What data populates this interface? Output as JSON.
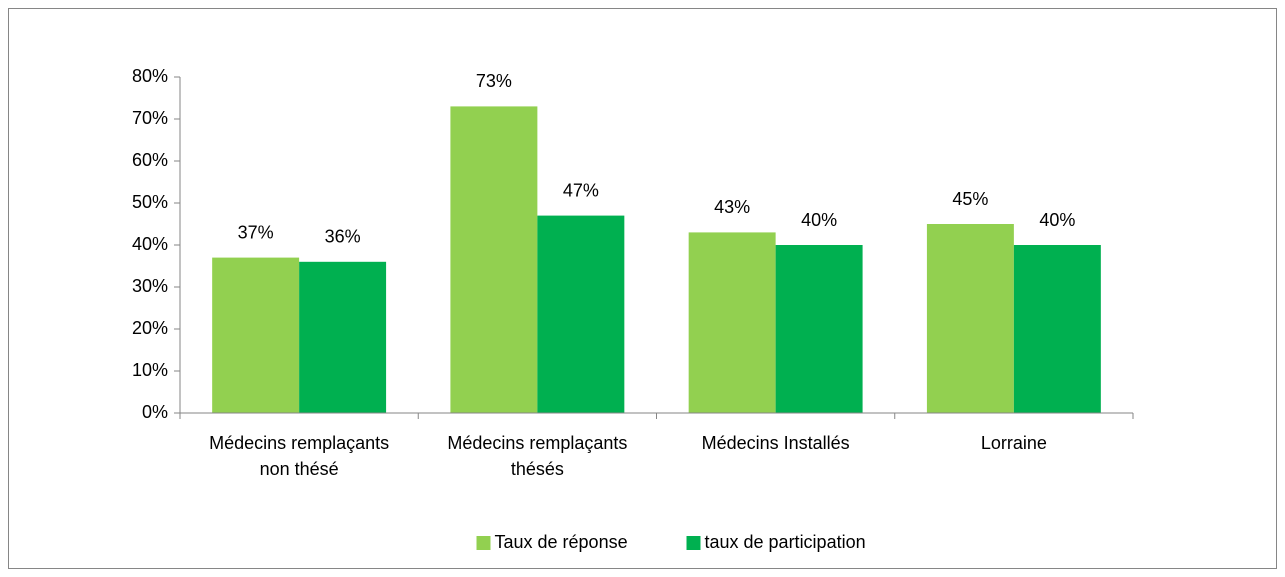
{
  "chart_data": {
    "type": "bar",
    "categories": [
      "Médecins remplaçants non thésé",
      "Médecins remplaçants thésés",
      "Médecins Installés",
      "Lorraine"
    ],
    "series": [
      {
        "name": "Taux de réponse",
        "color": "#92d050",
        "values": [
          37,
          73,
          43,
          45
        ],
        "value_labels": [
          "37%",
          "73%",
          "43%",
          "45%"
        ]
      },
      {
        "name": "taux de participation",
        "color": "#00b050",
        "values": [
          36,
          47,
          40,
          40
        ],
        "value_labels": [
          "36%",
          "47%",
          "40%",
          "40%"
        ]
      }
    ],
    "ylim": [
      0,
      80
    ],
    "yticks": [
      {
        "value": 0,
        "label": "0%"
      },
      {
        "value": 10,
        "label": "10%"
      },
      {
        "value": 20,
        "label": "20%"
      },
      {
        "value": 30,
        "label": "30%"
      },
      {
        "value": 40,
        "label": "40%"
      },
      {
        "value": 50,
        "label": "50%"
      },
      {
        "value": 60,
        "label": "60%"
      },
      {
        "value": 70,
        "label": "70%"
      },
      {
        "value": 80,
        "label": "80%"
      }
    ],
    "grid": false,
    "legend": "bottom"
  }
}
